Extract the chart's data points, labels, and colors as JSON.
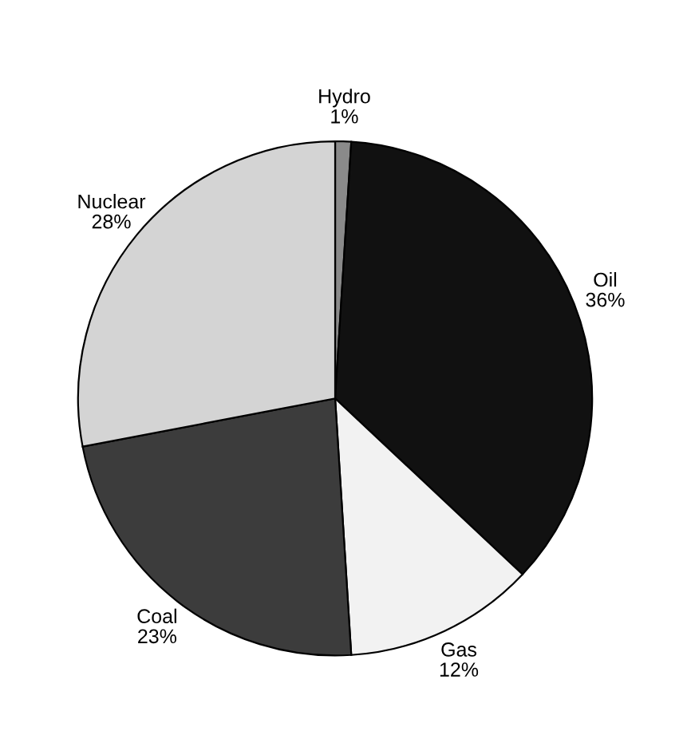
{
  "chart_data": {
    "type": "pie",
    "categories": [
      "Hydro",
      "Oil",
      "Gas",
      "Coal",
      "Nuclear"
    ],
    "values": [
      1,
      36,
      12,
      23,
      28
    ],
    "value_labels": [
      "1%",
      "36%",
      "12%",
      "23%",
      "28%"
    ],
    "colors": [
      "#8a8a8a",
      "#111111",
      "#f2f2f2",
      "#3c3c3c",
      "#d4d4d4"
    ]
  }
}
